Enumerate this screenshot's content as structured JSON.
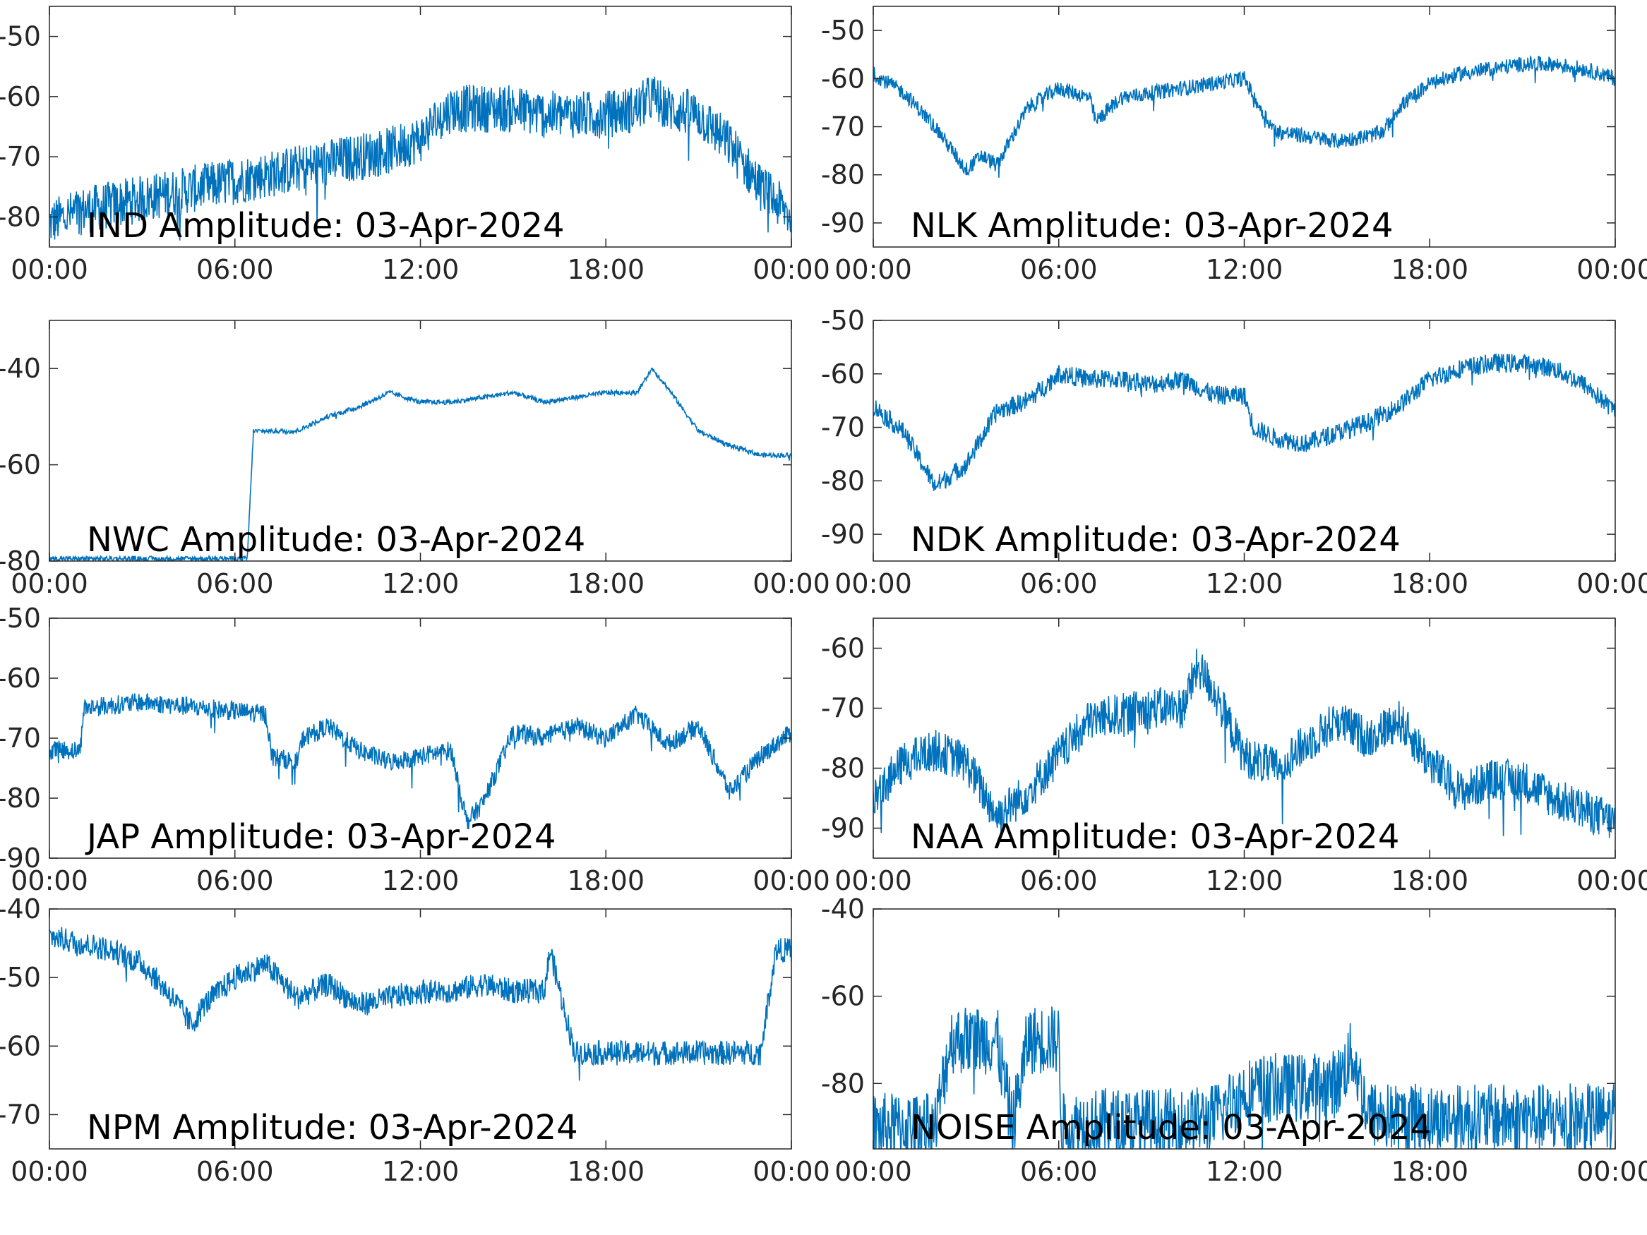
{
  "figure": {
    "line_color": "#0072BD",
    "axis_color": "#262626",
    "title_color": "#000000"
  },
  "chart_data": [
    {
      "type": "line",
      "title": "IND Amplitude: 03-Apr-2024",
      "x_ticks": [
        "00:00",
        "06:00",
        "12:00",
        "18:00",
        "00:00"
      ],
      "y_ticks": [
        "-50",
        "-60",
        "-70",
        "-80"
      ],
      "xlim": [
        0,
        24
      ],
      "ylim": [
        -85,
        -45
      ],
      "y_clip_labels": true,
      "noise": 4,
      "x": [
        0,
        1,
        2,
        3,
        4,
        5,
        6,
        7,
        8,
        9,
        10,
        11,
        12,
        12.5,
        13,
        14,
        15,
        16,
        17,
        18,
        19,
        19.5,
        20,
        21,
        22,
        23,
        24
      ],
      "y": [
        -81,
        -79,
        -78,
        -77,
        -76,
        -75,
        -74,
        -73,
        -72,
        -71,
        -70,
        -69,
        -67,
        -64,
        -62,
        -62,
        -62,
        -63,
        -63,
        -63,
        -62,
        -60,
        -62,
        -63,
        -68,
        -75,
        -80
      ]
    },
    {
      "type": "line",
      "title": "NLK Amplitude: 03-Apr-2024",
      "x_ticks": [
        "00:00",
        "06:00",
        "12:00",
        "18:00",
        "00:00"
      ],
      "y_ticks": [
        "-50",
        "-60",
        "-70",
        "-80",
        "-90"
      ],
      "xlim": [
        0,
        24
      ],
      "ylim": [
        -95,
        -45
      ],
      "noise": 1.6,
      "x": [
        0,
        1,
        2,
        3,
        3.5,
        4,
        5,
        6,
        7,
        7.2,
        8,
        9,
        10,
        11,
        12,
        12.5,
        13,
        14,
        15,
        16,
        16.5,
        17,
        18,
        19,
        20,
        21,
        22,
        23,
        24
      ],
      "y": [
        -59,
        -63,
        -70,
        -79,
        -76,
        -78,
        -66,
        -62,
        -64,
        -69,
        -64,
        -63,
        -62,
        -61,
        -60,
        -66,
        -71,
        -72,
        -73,
        -72,
        -71,
        -66,
        -61,
        -59,
        -58,
        -57,
        -57,
        -58,
        -60
      ]
    },
    {
      "type": "line",
      "title": "NWC Amplitude: 03-Apr-2024",
      "x_ticks": [
        "00:00",
        "06:00",
        "12:00",
        "18:00",
        "00:00"
      ],
      "y_ticks": [
        "-40",
        "-60",
        "-80"
      ],
      "xlim": [
        0,
        24
      ],
      "ylim": [
        -80,
        -30
      ],
      "y_clip_labels": true,
      "noise": 0.5,
      "x": [
        0,
        1,
        2,
        3,
        4,
        5,
        6,
        6.4,
        6.6,
        7,
        8,
        9,
        10,
        11,
        12,
        13,
        14,
        15,
        16,
        17,
        18,
        19,
        19.5,
        20,
        21,
        22,
        23,
        24
      ],
      "y": [
        -79.5,
        -79.5,
        -79.5,
        -79.5,
        -79.5,
        -79.5,
        -79.5,
        -79.5,
        -53,
        -53,
        -53,
        -50,
        -48,
        -45,
        -47,
        -47,
        -46,
        -45,
        -47,
        -46,
        -45,
        -45,
        -40,
        -44,
        -53,
        -56,
        -58,
        -58
      ]
    },
    {
      "type": "line",
      "title": "NDK Amplitude: 03-Apr-2024",
      "x_ticks": [
        "00:00",
        "06:00",
        "12:00",
        "18:00",
        "00:00"
      ],
      "y_ticks": [
        "-50",
        "-60",
        "-70",
        "-80",
        "-90"
      ],
      "xlim": [
        0,
        24
      ],
      "ylim": [
        -95,
        -50
      ],
      "noise": 1.8,
      "x": [
        0,
        1,
        2,
        3,
        4,
        5,
        6,
        7,
        8,
        9,
        10,
        11,
        12,
        12.3,
        13,
        14,
        15,
        16,
        17,
        18,
        19,
        20,
        21,
        22,
        23,
        24
      ],
      "y": [
        -66,
        -71,
        -81,
        -77,
        -67,
        -65,
        -60,
        -61,
        -61,
        -62,
        -61,
        -64,
        -64,
        -70,
        -72,
        -73,
        -71,
        -69,
        -66,
        -61,
        -59,
        -58,
        -58,
        -59,
        -62,
        -67
      ]
    },
    {
      "type": "line",
      "title": "JAP Amplitude: 03-Apr-2024",
      "x_ticks": [
        "00:00",
        "06:00",
        "12:00",
        "18:00",
        "00:00"
      ],
      "y_ticks": [
        "-50",
        "-60",
        "-70",
        "-80",
        "-90"
      ],
      "xlim": [
        0,
        24
      ],
      "ylim": [
        -90,
        -50
      ],
      "y_clip_labels": true,
      "noise": 1.6,
      "x": [
        0,
        1,
        1.1,
        3,
        5,
        7,
        7.2,
        8,
        8.2,
        9,
        10,
        11,
        12,
        13,
        13.5,
        14,
        15,
        16,
        17,
        18,
        19,
        20,
        21,
        22,
        23,
        24
      ],
      "y": [
        -72,
        -72,
        -65,
        -64,
        -65,
        -66,
        -73,
        -74,
        -70,
        -68,
        -72,
        -74,
        -73,
        -72,
        -84,
        -81,
        -69,
        -70,
        -68,
        -70,
        -66,
        -71,
        -68,
        -79,
        -73,
        -69
      ]
    },
    {
      "type": "line",
      "title": "NAA Amplitude: 03-Apr-2024",
      "x_ticks": [
        "00:00",
        "06:00",
        "12:00",
        "18:00",
        "00:00"
      ],
      "y_ticks": [
        "-60",
        "-70",
        "-80",
        "-90"
      ],
      "xlim": [
        0,
        24
      ],
      "ylim": [
        -95,
        -55
      ],
      "noise": 3.5,
      "x": [
        0,
        1,
        2,
        3,
        4,
        5,
        6,
        7,
        8,
        9,
        10,
        10.5,
        11,
        12,
        13,
        14,
        15,
        16,
        17,
        18,
        19,
        20,
        21,
        22,
        23,
        24
      ],
      "y": [
        -85,
        -79,
        -77,
        -79,
        -88,
        -84,
        -78,
        -72,
        -71,
        -70,
        -70,
        -63,
        -67,
        -78,
        -80,
        -76,
        -72,
        -75,
        -72,
        -79,
        -84,
        -82,
        -82,
        -85,
        -87,
        -89
      ]
    },
    {
      "type": "line",
      "title": "NPM Amplitude: 03-Apr-2024",
      "x_ticks": [
        "00:00",
        "06:00",
        "12:00",
        "18:00",
        "00:00"
      ],
      "y_ticks": [
        "-40",
        "-50",
        "-60",
        "-70"
      ],
      "xlim": [
        0,
        24
      ],
      "ylim": [
        -75,
        -40
      ],
      "y_clip_labels": true,
      "noise": 1.8,
      "x": [
        0,
        1,
        2,
        3,
        4,
        4.6,
        5,
        6,
        7,
        8,
        9,
        10,
        11,
        12,
        13,
        14,
        15,
        16,
        16.2,
        16.4,
        17,
        18,
        19,
        20,
        21,
        22,
        23,
        23.5,
        24
      ],
      "y": [
        -44,
        -45,
        -46,
        -48,
        -53,
        -57,
        -54,
        -50,
        -48,
        -53,
        -51,
        -54,
        -53,
        -52,
        -52,
        -51,
        -52,
        -52,
        -46,
        -50,
        -61,
        -61,
        -61,
        -61,
        -61,
        -61,
        -61,
        -46,
        -46
      ]
    },
    {
      "type": "line",
      "title": "NOISE Amplitude: 03-Apr-2024",
      "x_ticks": [
        "00:00",
        "06:00",
        "12:00",
        "18:00",
        "00:00"
      ],
      "y_ticks": [
        "-40",
        "-60",
        "-80"
      ],
      "xlim": [
        0,
        24
      ],
      "ylim": [
        -95,
        -40
      ],
      "noise": 8,
      "x": [
        0,
        1,
        2,
        2.5,
        3,
        4,
        4.5,
        5,
        6,
        6.1,
        7,
        8,
        9,
        10,
        11,
        12,
        13,
        14,
        15,
        15.5,
        16,
        17,
        18,
        19,
        20,
        21,
        22,
        23,
        24
      ],
      "y": [
        -90,
        -90,
        -90,
        -70,
        -70,
        -70,
        -90,
        -70,
        -70,
        -90,
        -89,
        -89,
        -89,
        -89,
        -88,
        -82,
        -81,
        -81,
        -80,
        -73,
        -87,
        -88,
        -88,
        -88,
        -88,
        -88,
        -88,
        -88,
        -88
      ]
    }
  ]
}
